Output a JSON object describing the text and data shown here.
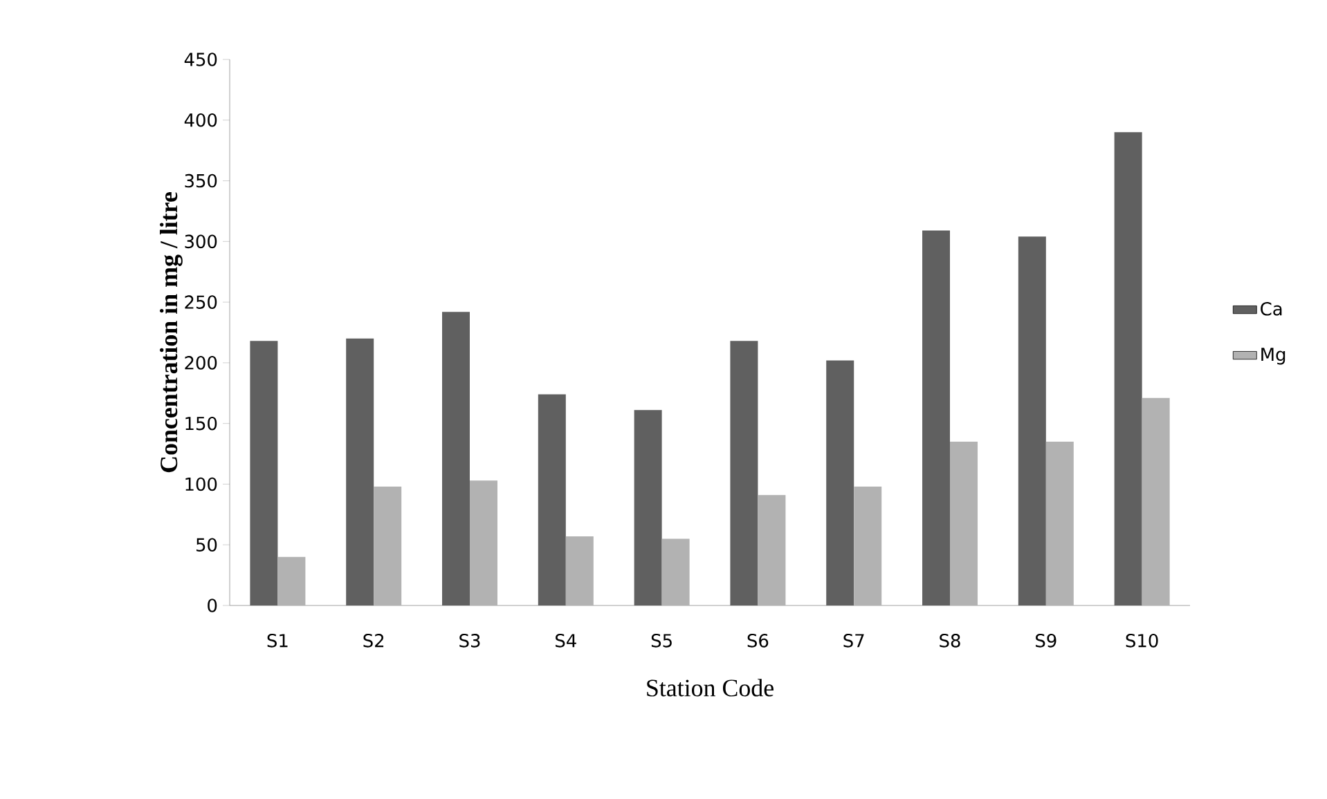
{
  "chart_data": {
    "type": "bar",
    "xlabel": "Station Code",
    "ylabel": "Concentration in mg / litre",
    "categories": [
      "S1",
      "S2",
      "S3",
      "S4",
      "S5",
      "S6",
      "S7",
      "S8",
      "S9",
      "S10"
    ],
    "series": [
      {
        "name": "Ca",
        "color": "#606060",
        "values": [
          218,
          220,
          242,
          174,
          161,
          218,
          202,
          309,
          304,
          390
        ]
      },
      {
        "name": "Mg",
        "color": "#b2b2b2",
        "values": [
          40,
          98,
          103,
          57,
          55,
          91,
          98,
          135,
          135,
          171
        ]
      }
    ],
    "ylim": [
      0,
      450
    ],
    "yticks": [
      0,
      50,
      100,
      150,
      200,
      250,
      300,
      350,
      400,
      450
    ],
    "grid": false,
    "legend": "right"
  }
}
